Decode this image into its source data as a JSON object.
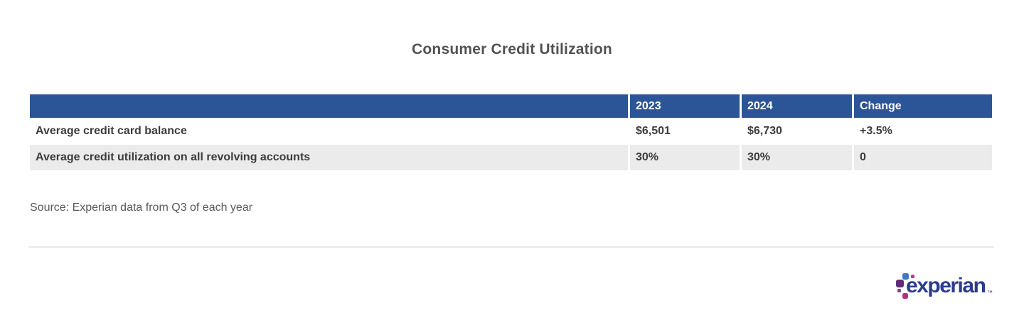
{
  "page": {
    "title": "Consumer Credit Utilization"
  },
  "table": {
    "columns": [
      "",
      "2023",
      "2024",
      "Change"
    ],
    "rows": [
      {
        "cells": [
          "Average credit card balance",
          "$6,501",
          "$6,730",
          "+3.5%"
        ]
      },
      {
        "cells": [
          "Average credit utilization on all revolving accounts",
          "30%",
          "30%",
          "0"
        ]
      }
    ]
  },
  "source_note": "Source: Experian data from Q3 of each year",
  "logo": {
    "text": "experian",
    "trademark": "™"
  },
  "colors": {
    "header_blue": "#2b5596",
    "alt_row_gray": "#ebebeb",
    "title_gray": "#515254",
    "body_text": "#3c3c3e",
    "source_gray": "#58595b",
    "logo_blue_text": "#2b3b8f",
    "logo_dot_blue": "#3f79c1",
    "logo_dot_purple": "#5f2c78",
    "logo_dot_magenta": "#ba2d7d"
  },
  "chart_data": {
    "type": "table",
    "title": "Consumer Credit Utilization",
    "columns": [
      "",
      "2023",
      "2024",
      "Change"
    ],
    "rows": [
      [
        "Average credit card balance",
        "$6,501",
        "$6,730",
        "+3.5%"
      ],
      [
        "Average credit utilization on all revolving accounts",
        "30%",
        "30%",
        "0"
      ]
    ],
    "source": "Source: Experian data from Q3 of each year",
    "legend_position": "none",
    "grid": false
  }
}
